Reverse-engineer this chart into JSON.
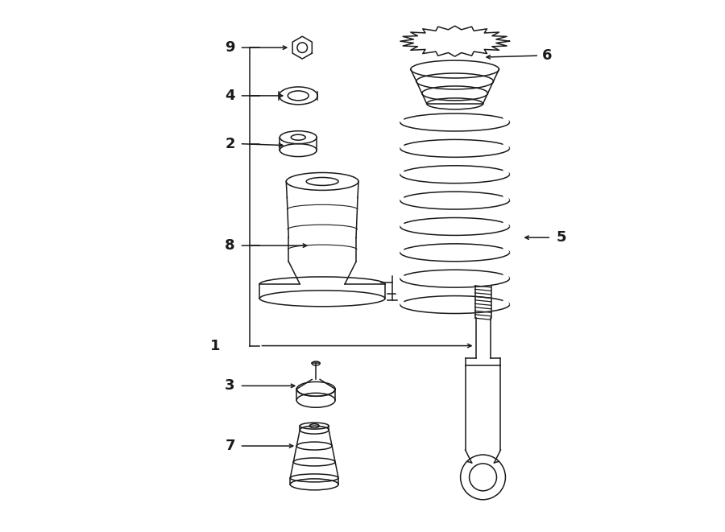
{
  "bg_color": "#ffffff",
  "line_color": "#1a1a1a",
  "fig_width": 9.0,
  "fig_height": 6.61,
  "dpi": 100,
  "lw": 1.1
}
